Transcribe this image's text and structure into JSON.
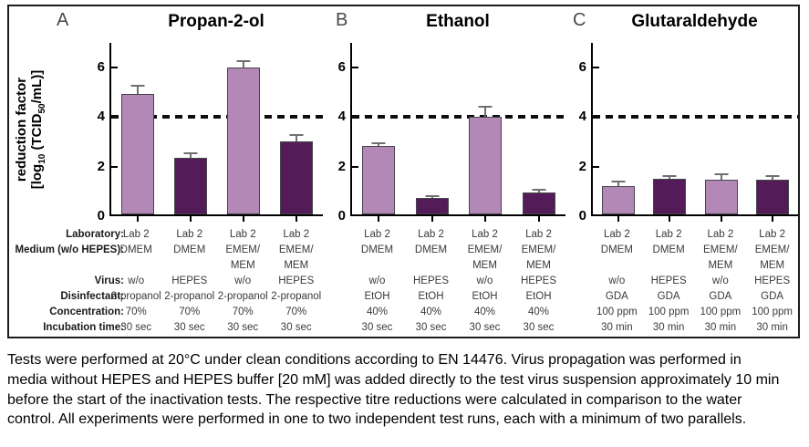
{
  "caption": "Tests were performed at 20°C under clean conditions according to EN 14476. Virus propagation was performed in media without HEPES and HEPES buffer [20 mM] was added directly to the test virus suspension approximately 10 min before the start of the inactivation tests. The respective titre reductions were calculated in comparison to the water control. All experiments were performed in one to two independent test runs, each with a minimum of two parallels.",
  "figure": {
    "row_labels": [
      "Laboratory:",
      "Medium (w/o HEPES):",
      "Virus:",
      "Disinfectant:",
      "Concentration:",
      "Incubation time:"
    ],
    "ylabel": {
      "line1": "reduction factor",
      "line2_parts": [
        {
          "t": "[log"
        },
        {
          "t": "10",
          "sub": true
        },
        {
          "t": " (TCID"
        },
        {
          "t": "50",
          "sub": true
        },
        {
          "t": "/mL)]"
        }
      ]
    },
    "colors": {
      "light_bar": "#b488b6",
      "dark_bar": "#531c58",
      "bar_outline": "#45454b",
      "error_bar": "#6f6f6f",
      "threshold_line": "#0d0d0d",
      "panel_letter": "#4a4a4a"
    },
    "panels": [
      {
        "letter": "A",
        "table": {
          "laboratory": [
            "Lab 2",
            "Lab 2",
            "Lab 2",
            "Lab 2"
          ],
          "medium": [
            "DMEM",
            "DMEM",
            "EMEM/\nMEM",
            "EMEM/\nMEM"
          ],
          "virus": [
            "w/o",
            "HEPES",
            "w/o",
            "HEPES"
          ],
          "disinfectant": [
            "2-propanol",
            "2-propanol",
            "2-propanol",
            "2-propanol"
          ],
          "concentration": [
            "70%",
            "70%",
            "70%",
            "70%"
          ],
          "incubation_time": [
            "30 sec",
            "30 sec",
            "30 sec",
            "30 sec"
          ]
        }
      },
      {
        "letter": "B",
        "table": {
          "laboratory": [
            "Lab 2",
            "Lab 2",
            "Lab 2",
            "Lab 2"
          ],
          "medium": [
            "DMEM",
            "DMEM",
            "EMEM/\nMEM",
            "EMEM/\nMEM"
          ],
          "virus": [
            "w/o",
            "HEPES",
            "w/o",
            "HEPES"
          ],
          "disinfectant": [
            "EtOH",
            "EtOH",
            "EtOH",
            "EtOH"
          ],
          "concentration": [
            "40%",
            "40%",
            "40%",
            "40%"
          ],
          "incubation_time": [
            "30 sec",
            "30 sec",
            "30 sec",
            "30 sec"
          ]
        }
      },
      {
        "letter": "C",
        "table": {
          "laboratory": [
            "Lab 2",
            "Lab 2",
            "Lab 2",
            "Lab 2"
          ],
          "medium": [
            "DMEM",
            "DMEM",
            "EMEM/\nMEM",
            "EMEM/\nMEM"
          ],
          "virus": [
            "w/o",
            "HEPES",
            "w/o",
            "HEPES"
          ],
          "disinfectant": [
            "GDA",
            "GDA",
            "GDA",
            "GDA"
          ],
          "concentration": [
            "100 ppm",
            "100 ppm",
            "100 ppm",
            "100 ppm"
          ],
          "incubation_time": [
            "30 min",
            "30 min",
            "30 min",
            "30 min"
          ]
        }
      }
    ]
  },
  "chart_data": [
    {
      "type": "bar",
      "title": "Propan-2-ol",
      "categories": [
        "DMEM + w/o",
        "DMEM + HEPES",
        "EMEM/MEM + w/o",
        "EMEM/MEM + HEPES"
      ],
      "values": [
        4.85,
        2.3,
        5.95,
        2.95
      ],
      "errors": [
        0.3,
        0.12,
        0.2,
        0.22
      ],
      "bar_color_pattern": [
        "light",
        "dark",
        "light",
        "dark"
      ],
      "ylabel": "reduction factor [log10 (TCID50/mL)]",
      "ylim": [
        0,
        7
      ],
      "yticks": [
        0,
        2,
        4,
        6
      ],
      "threshold": 4,
      "grid": false,
      "legend": false
    },
    {
      "type": "bar",
      "title": "Ethanol",
      "categories": [
        "DMEM + w/o",
        "DMEM + HEPES",
        "EMEM/MEM + w/o",
        "EMEM/MEM + HEPES"
      ],
      "values": [
        2.75,
        0.65,
        3.95,
        0.9
      ],
      "errors": [
        0.1,
        0.06,
        0.35,
        0.06
      ],
      "bar_color_pattern": [
        "light",
        "dark",
        "light",
        "dark"
      ],
      "ylabel": "",
      "ylim": [
        0,
        7
      ],
      "yticks": [
        0,
        2,
        4,
        6
      ],
      "threshold": 4,
      "grid": false,
      "legend": false
    },
    {
      "type": "bar",
      "title": "Glutaraldehyde",
      "categories": [
        "DMEM + w/o",
        "DMEM + HEPES",
        "EMEM/MEM + w/o",
        "EMEM/MEM + HEPES"
      ],
      "values": [
        1.15,
        1.45,
        1.4,
        1.4
      ],
      "errors": [
        0.13,
        0.07,
        0.2,
        0.12
      ],
      "bar_color_pattern": [
        "light",
        "dark",
        "light",
        "dark"
      ],
      "ylabel": "",
      "ylim": [
        0,
        7
      ],
      "yticks": [
        0,
        2,
        4,
        6
      ],
      "threshold": 4,
      "grid": false,
      "legend": false
    }
  ]
}
